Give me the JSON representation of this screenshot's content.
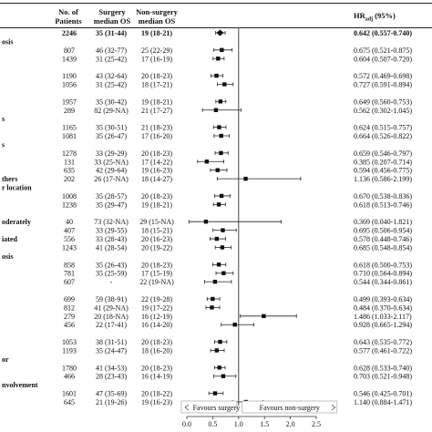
{
  "headers": {
    "patients": "No. of Patients",
    "surgery": "Surgery median OS",
    "nonsurgery": "Non-surgery median OS",
    "hr": "HR",
    "hr_sub": "adj",
    "hr_suffix": " (95%)"
  },
  "axis": {
    "ticks": [
      "0.0",
      "0.5",
      "1.0",
      "1.5",
      "2.0",
      "2.5"
    ],
    "favours_left": "Favours surgery",
    "favours_right": "Favours non-surgery"
  },
  "chart_data": {
    "type": "forest",
    "title": "",
    "xlim": [
      0.0,
      2.5
    ],
    "reference_line": 1.0,
    "columns": [
      "No. of Patients",
      "Surgery median OS",
      "Non-surgery median OS",
      "HRadj (95%)"
    ],
    "rows": [
      {
        "label": "",
        "n": "2246",
        "surgery": "35 (31-44)",
        "nonsurgery": "19 (18-21)",
        "hr_text": "0.642 (0.557-0.740)",
        "hr": 0.642,
        "lo": 0.557,
        "hi": 0.74,
        "overall": true
      },
      {
        "label": "osis",
        "header": true
      },
      {
        "label": "",
        "n": "807",
        "surgery": "46 (32-77)",
        "nonsurgery": "25 (22-29)",
        "hr_text": "0.675 (0.521-0.875)",
        "hr": 0.675,
        "lo": 0.521,
        "hi": 0.875
      },
      {
        "label": "",
        "n": "1439",
        "surgery": "31 (25-42)",
        "nonsurgery": "17 (16-19)",
        "hr_text": "0.604 (0.507-0.720)",
        "hr": 0.604,
        "lo": 0.507,
        "hi": 0.72
      },
      {
        "label": "",
        "header": true
      },
      {
        "label": "",
        "n": "1190",
        "surgery": "43 (32-64)",
        "nonsurgery": "20 (18-23)",
        "hr_text": "0.572 (0.469-0.698)",
        "hr": 0.572,
        "lo": 0.469,
        "hi": 0.698
      },
      {
        "label": "",
        "n": "1056",
        "surgery": "31 (25-42)",
        "nonsurgery": "18 (17-21)",
        "hr_text": "0.727 (0.591-0.894)",
        "hr": 0.727,
        "lo": 0.591,
        "hi": 0.894
      },
      {
        "label": "",
        "header": true
      },
      {
        "label": "",
        "n": "1957",
        "surgery": "35 (30-42)",
        "nonsurgery": "19 (18-21)",
        "hr_text": "0.649 (0.560-0.753)",
        "hr": 0.649,
        "lo": 0.56,
        "hi": 0.753
      },
      {
        "label": "",
        "n": "289",
        "surgery": "82 (29-NA)",
        "nonsurgery": "21 (17-27)",
        "hr_text": "0.562 (0.302-1.045)",
        "hr": 0.562,
        "lo": 0.302,
        "hi": 1.045
      },
      {
        "label": "s",
        "header": true
      },
      {
        "label": "",
        "n": "1165",
        "surgery": "35 (30-51)",
        "nonsurgery": "21 (18-23)",
        "hr_text": "0.624 (0.515-0.757)",
        "hr": 0.624,
        "lo": 0.515,
        "hi": 0.757
      },
      {
        "label": "",
        "n": "1081",
        "surgery": "35 (26-47)",
        "nonsurgery": "17 (16-20)",
        "hr_text": "0.664 (0.526-0.822)",
        "hr": 0.664,
        "lo": 0.526,
        "hi": 0.822
      },
      {
        "label": "s",
        "header": true
      },
      {
        "label": "",
        "n": "1278",
        "surgery": "33 (29-29)",
        "nonsurgery": "20 (18-23)",
        "hr_text": "0.659 (0.546-0.797)",
        "hr": 0.659,
        "lo": 0.546,
        "hi": 0.797
      },
      {
        "label": "",
        "n": "131",
        "surgery": "33 (25-NA)",
        "nonsurgery": "17 (14-22)",
        "hr_text": "0.385 (0.207-0.714)",
        "hr": 0.385,
        "lo": 0.207,
        "hi": 0.714
      },
      {
        "label": "",
        "n": "635",
        "surgery": "42 (29-64)",
        "nonsurgery": "19 (16-23)",
        "hr_text": "0.594 (0.456-0.775)",
        "hr": 0.594,
        "lo": 0.456,
        "hi": 0.775
      },
      {
        "label": "thers",
        "n": "202",
        "surgery": "26 (17-NA)",
        "nonsurgery": "18 (14-27)",
        "hr_text": "1.136 (0.586-2.199)",
        "hr": 1.136,
        "lo": 0.586,
        "hi": 2.199
      },
      {
        "label": "r location",
        "header": true
      },
      {
        "label": "",
        "n": "1008",
        "surgery": "35 (28-57)",
        "nonsurgery": "20 (18-23)",
        "hr_text": "0.670 (0.538-0.836)",
        "hr": 0.67,
        "lo": 0.538,
        "hi": 0.836
      },
      {
        "label": "",
        "n": "1238",
        "surgery": "35 (29-47)",
        "nonsurgery": "19 (18-21)",
        "hr_text": "0.618 (0.513-0.746)",
        "hr": 0.618,
        "lo": 0.513,
        "hi": 0.746
      },
      {
        "label": "",
        "header": true
      },
      {
        "label": "oderately",
        "n": "40",
        "surgery": "73 (32-NA)",
        "nonsurgery": "29 (15-NA)",
        "hr_text": "0.369 (0.040-1.821)",
        "hr": 0.369,
        "lo": 0.04,
        "hi": 1.821
      },
      {
        "label": "",
        "n": "407",
        "surgery": "33 (29-55)",
        "nonsurgery": "18 (15-21)",
        "hr_text": "0.695 (0.506-0.954)",
        "hr": 0.695,
        "lo": 0.506,
        "hi": 0.954
      },
      {
        "label": "iated",
        "n": "556",
        "surgery": "33 (28-43)",
        "nonsurgery": "20 (16-23)",
        "hr_text": "0.578 (0.448-0.746)",
        "hr": 0.578,
        "lo": 0.448,
        "hi": 0.746
      },
      {
        "label": "",
        "n": "1243",
        "surgery": "41 (28-54)",
        "nonsurgery": "20 (19-22)",
        "hr_text": "0.685 (0.548-0.854)",
        "hr": 0.685,
        "lo": 0.548,
        "hi": 0.854
      },
      {
        "label": "osis",
        "header": true
      },
      {
        "label": "",
        "n": "858",
        "surgery": "35 (26-43)",
        "nonsurgery": "20 (18-23)",
        "hr_text": "0.618 (0.500-0.753)",
        "hr": 0.618,
        "lo": 0.5,
        "hi": 0.753
      },
      {
        "label": "",
        "n": "781",
        "surgery": "35 (25-59)",
        "nonsurgery": "17 (15-19)",
        "hr_text": "0.710 (0.564-0.894)",
        "hr": 0.71,
        "lo": 0.564,
        "hi": 0.894
      },
      {
        "label": "",
        "n": "607",
        "surgery": "-",
        "nonsurgery": "22 (19-NA)",
        "hr_text": "0.544 (0.344-0.861)",
        "hr": 0.544,
        "lo": 0.344,
        "hi": 0.861
      },
      {
        "label": "",
        "header": true
      },
      {
        "label": "",
        "n": "699",
        "surgery": "59 (38-91)",
        "nonsurgery": "22 (19-28)",
        "hr_text": "0.499 (0.393-0.634)",
        "hr": 0.499,
        "lo": 0.393,
        "hi": 0.634
      },
      {
        "label": "",
        "n": "812",
        "surgery": "41 (29-NA)",
        "nonsurgery": "19 (17-22)",
        "hr_text": "0.484 (0.370-0.634)",
        "hr": 0.484,
        "lo": 0.37,
        "hi": 0.634
      },
      {
        "label": "",
        "n": "279",
        "surgery": "20 (18-NA)",
        "nonsurgery": "16 (12-19)",
        "hr_text": "1.486 (1.033-2.117)",
        "hr": 1.486,
        "lo": 1.033,
        "hi": 2.117
      },
      {
        "label": "",
        "n": "456",
        "surgery": "22 (17-41)",
        "nonsurgery": "16 (14-20)",
        "hr_text": "0.928 (0.665-1.294)",
        "hr": 0.928,
        "lo": 0.665,
        "hi": 1.294
      },
      {
        "label": "",
        "header": true
      },
      {
        "label": "",
        "n": "1053",
        "surgery": "38 (31-51)",
        "nonsurgery": "20 (18-23)",
        "hr_text": "0.643 (0.535-0.772)",
        "hr": 0.643,
        "lo": 0.535,
        "hi": 0.772
      },
      {
        "label": "",
        "n": "1193",
        "surgery": "35 (24-47)",
        "nonsurgery": "18 (16-20)",
        "hr_text": "0.577 (0.461-0.722)",
        "hr": 0.577,
        "lo": 0.461,
        "hi": 0.722
      },
      {
        "label": "or",
        "header": true
      },
      {
        "label": "",
        "n": "1780",
        "surgery": "41 (34-53)",
        "nonsurgery": "20 (18-23)",
        "hr_text": "0.628 (0.533-0.740)",
        "hr": 0.628,
        "lo": 0.533,
        "hi": 0.74
      },
      {
        "label": "",
        "n": "466",
        "surgery": "28 (23-43)",
        "nonsurgery": "16 (14-19)",
        "hr_text": "0.703 (0.521-0.948)",
        "hr": 0.703,
        "lo": 0.521,
        "hi": 0.948
      },
      {
        "label": "nvolvement",
        "header": true
      },
      {
        "label": "",
        "n": "1601",
        "surgery": "47 (35-69)",
        "nonsurgery": "20 (18-22)",
        "hr_text": "0.546 (0.425-0.701)",
        "hr": 0.546,
        "lo": 0.425,
        "hi": 0.701
      },
      {
        "label": "",
        "n": "645",
        "surgery": "21 (19-26)",
        "nonsurgery": "19 (16-23)",
        "hr_text": "1.140 (0.884-1.471)",
        "hr": 1.14,
        "lo": 0.884,
        "hi": 1.471
      }
    ]
  }
}
